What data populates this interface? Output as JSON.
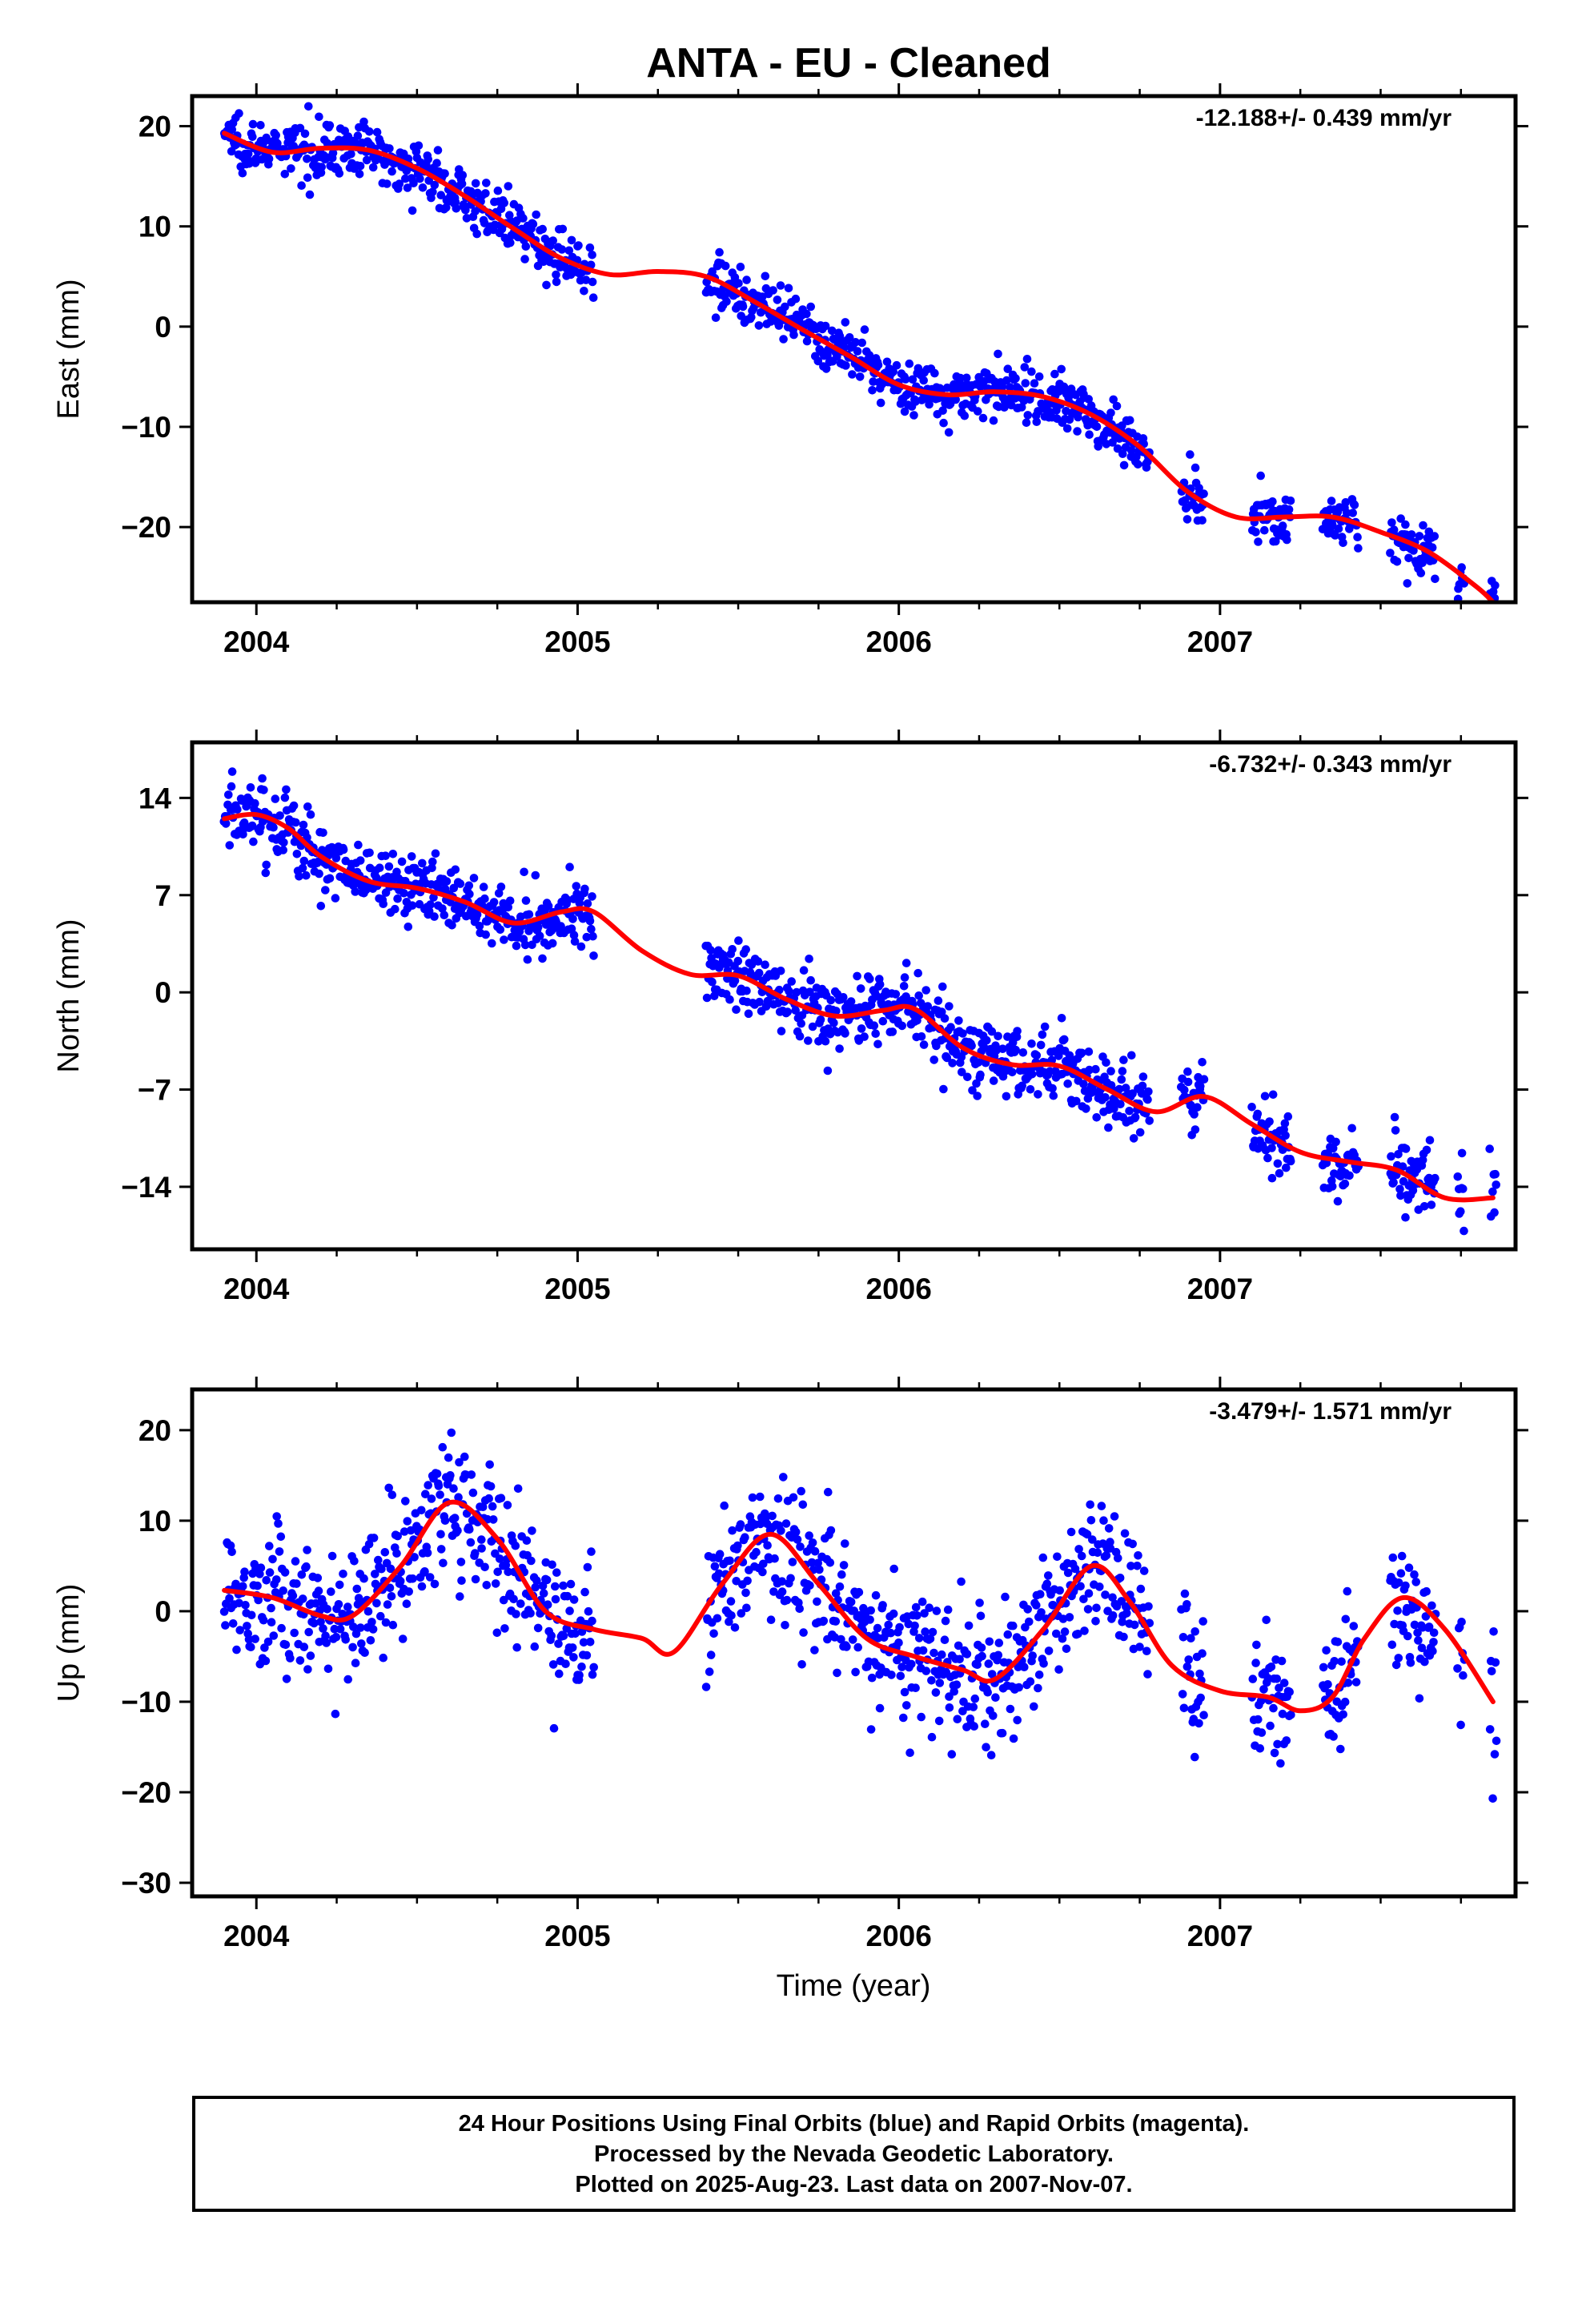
{
  "title": "ANTA  - EU - Cleaned",
  "xlabel": "Time (year)",
  "colors": {
    "points": "#0000ff",
    "fit": "#ff0000",
    "frame": "#000000"
  },
  "footer": {
    "lines": [
      "24 Hour Positions Using Final Orbits (blue) and Rapid Orbits (magenta).",
      "Processed by the Nevada Geodetic Laboratory.",
      "Plotted on 2025-Aug-23. Last data on 2007-Nov-07."
    ]
  },
  "chart_data": [
    {
      "type": "scatter",
      "name_key": "east",
      "ylabel": "East (mm)",
      "rate": "-12.188+/- 0.439 mm/yr",
      "xlim": [
        2003.8,
        2007.92
      ],
      "ylim": [
        -27.5,
        23
      ],
      "xticks": [
        2004,
        2005,
        2006,
        2007
      ],
      "yticks": [
        20,
        10,
        0,
        -10,
        -20
      ],
      "ytick_labels": [
        "20",
        "10",
        "0",
        "−10",
        "−20"
      ],
      "data_segments": [
        [
          2003.9,
          2005.05
        ],
        [
          2005.4,
          2006.78
        ],
        [
          2006.88,
          2006.95
        ],
        [
          2007.1,
          2007.22
        ],
        [
          2007.32,
          2007.43
        ],
        [
          2007.53,
          2007.67
        ],
        [
          2007.74,
          2007.76
        ],
        [
          2007.84,
          2007.86
        ]
      ],
      "scatter_sd": 1.3,
      "trend_pts": [
        [
          2003.9,
          19.3
        ],
        [
          2004.05,
          17.4
        ],
        [
          2004.2,
          17.8
        ],
        [
          2004.35,
          17.6
        ],
        [
          2004.5,
          15.8
        ],
        [
          2004.65,
          13.0
        ],
        [
          2004.8,
          9.8
        ],
        [
          2004.95,
          6.8
        ],
        [
          2005.1,
          5.2
        ],
        [
          2005.25,
          5.5
        ],
        [
          2005.4,
          5.0
        ],
        [
          2005.55,
          2.5
        ],
        [
          2005.7,
          -0.3
        ],
        [
          2005.85,
          -3.0
        ],
        [
          2006.0,
          -5.8
        ],
        [
          2006.15,
          -6.8
        ],
        [
          2006.3,
          -6.5
        ],
        [
          2006.45,
          -7.0
        ],
        [
          2006.6,
          -8.8
        ],
        [
          2006.75,
          -12.0
        ],
        [
          2006.9,
          -16.5
        ],
        [
          2007.05,
          -19.0
        ],
        [
          2007.2,
          -19.0
        ],
        [
          2007.35,
          -19.0
        ],
        [
          2007.5,
          -20.5
        ],
        [
          2007.65,
          -22.5
        ],
        [
          2007.8,
          -26.0
        ],
        [
          2007.85,
          -27.5
        ]
      ]
    },
    {
      "type": "scatter",
      "name_key": "north",
      "ylabel": "North (mm)",
      "rate": "-6.732+/- 0.343 mm/yr",
      "xlim": [
        2003.8,
        2007.92
      ],
      "ylim": [
        -18.5,
        18
      ],
      "xticks": [
        2004,
        2005,
        2006,
        2007
      ],
      "yticks": [
        14,
        7,
        0,
        -7,
        -14
      ],
      "ytick_labels": [
        "14",
        "7",
        "0",
        "−7",
        "−14"
      ],
      "data_segments": [
        [
          2003.9,
          2005.05
        ],
        [
          2005.4,
          2006.78
        ],
        [
          2006.88,
          2006.95
        ],
        [
          2007.1,
          2007.22
        ],
        [
          2007.32,
          2007.43
        ],
        [
          2007.53,
          2007.67
        ],
        [
          2007.74,
          2007.76
        ],
        [
          2007.84,
          2007.86
        ]
      ],
      "scatter_sd": 1.3,
      "trend_pts": [
        [
          2003.9,
          12.5
        ],
        [
          2004.0,
          12.8
        ],
        [
          2004.1,
          11.8
        ],
        [
          2004.2,
          9.8
        ],
        [
          2004.35,
          8.0
        ],
        [
          2004.5,
          7.5
        ],
        [
          2004.65,
          6.5
        ],
        [
          2004.8,
          5.0
        ],
        [
          2004.95,
          5.8
        ],
        [
          2005.05,
          5.8
        ],
        [
          2005.2,
          3.0
        ],
        [
          2005.35,
          1.3
        ],
        [
          2005.5,
          1.2
        ],
        [
          2005.65,
          -0.5
        ],
        [
          2005.8,
          -1.7
        ],
        [
          2005.95,
          -1.3
        ],
        [
          2006.05,
          -1.2
        ],
        [
          2006.2,
          -4.0
        ],
        [
          2006.35,
          -5.2
        ],
        [
          2006.5,
          -5.3
        ],
        [
          2006.65,
          -7.0
        ],
        [
          2006.8,
          -8.6
        ],
        [
          2006.95,
          -7.5
        ],
        [
          2007.1,
          -9.5
        ],
        [
          2007.25,
          -11.5
        ],
        [
          2007.4,
          -12.2
        ],
        [
          2007.55,
          -12.8
        ],
        [
          2007.7,
          -14.8
        ],
        [
          2007.85,
          -14.8
        ]
      ]
    },
    {
      "type": "scatter",
      "name_key": "up",
      "ylabel": "Up (mm)",
      "rate": "-3.479+/- 1.571 mm/yr",
      "xlim": [
        2003.8,
        2007.92
      ],
      "ylim": [
        -31.5,
        24.5
      ],
      "xticks": [
        2004,
        2005,
        2006,
        2007
      ],
      "yticks": [
        20,
        10,
        0,
        -10,
        -20,
        -30
      ],
      "ytick_labels": [
        "20",
        "10",
        "0",
        "−10",
        "−20",
        "−30"
      ],
      "data_segments": [
        [
          2003.9,
          2005.05
        ],
        [
          2005.4,
          2006.78
        ],
        [
          2006.88,
          2006.95
        ],
        [
          2007.1,
          2007.22
        ],
        [
          2007.32,
          2007.43
        ],
        [
          2007.53,
          2007.67
        ],
        [
          2007.74,
          2007.76
        ],
        [
          2007.84,
          2007.86
        ]
      ],
      "scatter_sd": 3.8,
      "trend_pts": [
        [
          2003.9,
          2.3
        ],
        [
          2004.05,
          1.5
        ],
        [
          2004.2,
          -0.5
        ],
        [
          2004.3,
          -0.5
        ],
        [
          2004.45,
          5.0
        ],
        [
          2004.6,
          12.0
        ],
        [
          2004.75,
          8.0
        ],
        [
          2004.9,
          0.0
        ],
        [
          2005.05,
          -2.0
        ],
        [
          2005.2,
          -3.0
        ],
        [
          2005.3,
          -4.5
        ],
        [
          2005.45,
          3.0
        ],
        [
          2005.6,
          8.5
        ],
        [
          2005.75,
          3.0
        ],
        [
          2005.9,
          -3.0
        ],
        [
          2006.05,
          -5.0
        ],
        [
          2006.2,
          -6.5
        ],
        [
          2006.3,
          -7.5
        ],
        [
          2006.45,
          -2.0
        ],
        [
          2006.6,
          5.0
        ],
        [
          2006.72,
          1.0
        ],
        [
          2006.85,
          -6.0
        ],
        [
          2007.0,
          -8.8
        ],
        [
          2007.15,
          -9.5
        ],
        [
          2007.25,
          -11.0
        ],
        [
          2007.35,
          -9.5
        ],
        [
          2007.45,
          -3.0
        ],
        [
          2007.57,
          1.5
        ],
        [
          2007.7,
          -2.0
        ],
        [
          2007.85,
          -10.0
        ]
      ]
    }
  ]
}
